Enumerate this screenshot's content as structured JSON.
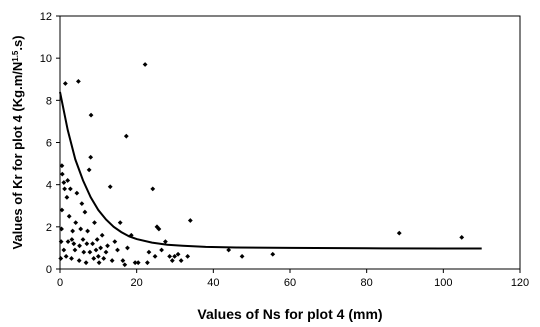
{
  "chart_data": {
    "type": "scatter",
    "title": "",
    "xlabel": "Values of Ns for plot 4 (mm)",
    "ylabel_parts": {
      "main": "Values of Kr  for plot 4 (Kg.m/N",
      "sup": "1.5",
      "end": ".s)"
    },
    "xlim": [
      0,
      120
    ],
    "ylim": [
      0,
      12
    ],
    "x_ticks": [
      "0",
      "20",
      "40",
      "60",
      "80",
      "100",
      "120"
    ],
    "y_ticks": [
      "0",
      "2",
      "4",
      "6",
      "8",
      "10",
      "12"
    ],
    "grid": false,
    "legend": "none",
    "series": [
      {
        "kind": "points",
        "color": "#000000",
        "points": [
          [
            0.2,
            0.5
          ],
          [
            0.3,
            1.3
          ],
          [
            0.4,
            1.9
          ],
          [
            0.5,
            2.8
          ],
          [
            0.5,
            4.9
          ],
          [
            0.6,
            4.5
          ],
          [
            1.0,
            0.9
          ],
          [
            1.0,
            4.1
          ],
          [
            1.2,
            3.8
          ],
          [
            1.4,
            8.8
          ],
          [
            1.6,
            0.6
          ],
          [
            1.8,
            3.4
          ],
          [
            2.0,
            4.2
          ],
          [
            2.1,
            1.3
          ],
          [
            2.4,
            2.5
          ],
          [
            2.7,
            3.8
          ],
          [
            3.0,
            0.5
          ],
          [
            3.1,
            1.4
          ],
          [
            3.3,
            1.8
          ],
          [
            3.6,
            1.2
          ],
          [
            3.9,
            0.9
          ],
          [
            4.1,
            2.2
          ],
          [
            4.4,
            3.6
          ],
          [
            4.8,
            8.9
          ],
          [
            5.0,
            0.4
          ],
          [
            5.1,
            1.1
          ],
          [
            5.4,
            1.9
          ],
          [
            5.7,
            3.1
          ],
          [
            6.0,
            1.4
          ],
          [
            6.2,
            0.8
          ],
          [
            6.5,
            2.7
          ],
          [
            6.8,
            0.3
          ],
          [
            7.0,
            1.2
          ],
          [
            7.2,
            1.8
          ],
          [
            7.6,
            4.7
          ],
          [
            7.8,
            0.8
          ],
          [
            8.0,
            5.3
          ],
          [
            8.1,
            7.3
          ],
          [
            8.5,
            1.2
          ],
          [
            8.8,
            0.5
          ],
          [
            9.0,
            2.2
          ],
          [
            9.4,
            0.9
          ],
          [
            9.7,
            1.4
          ],
          [
            10.0,
            0.6
          ],
          [
            10.2,
            0.3
          ],
          [
            10.6,
            1.0
          ],
          [
            11.0,
            1.6
          ],
          [
            11.4,
            0.5
          ],
          [
            12.0,
            0.8
          ],
          [
            12.4,
            1.1
          ],
          [
            13.1,
            3.9
          ],
          [
            13.6,
            0.4
          ],
          [
            14.3,
            1.3
          ],
          [
            15.0,
            0.9
          ],
          [
            15.7,
            2.2
          ],
          [
            16.4,
            0.4
          ],
          [
            16.9,
            0.2
          ],
          [
            17.3,
            6.3
          ],
          [
            17.6,
            1.0
          ],
          [
            18.6,
            1.6
          ],
          [
            19.6,
            0.3
          ],
          [
            20.4,
            0.3
          ],
          [
            22.2,
            9.7
          ],
          [
            22.8,
            0.3
          ],
          [
            23.2,
            0.8
          ],
          [
            24.2,
            3.8
          ],
          [
            24.8,
            0.6
          ],
          [
            25.3,
            2.0
          ],
          [
            25.8,
            1.9
          ],
          [
            26.5,
            0.9
          ],
          [
            27.5,
            1.3
          ],
          [
            28.6,
            0.6
          ],
          [
            29.3,
            0.4
          ],
          [
            29.9,
            0.6
          ],
          [
            30.8,
            0.7
          ],
          [
            31.6,
            0.4
          ],
          [
            33.3,
            0.6
          ],
          [
            34.0,
            2.3
          ],
          [
            44.0,
            0.9
          ],
          [
            47.5,
            0.6
          ],
          [
            55.5,
            0.7
          ],
          [
            88.5,
            1.7
          ],
          [
            104.8,
            1.5
          ]
        ]
      },
      {
        "kind": "curve",
        "color": "#000000",
        "points": [
          [
            0,
            8.4
          ],
          [
            2,
            6.6
          ],
          [
            4,
            5.2
          ],
          [
            6,
            4.2
          ],
          [
            8,
            3.4
          ],
          [
            10,
            2.8
          ],
          [
            12,
            2.35
          ],
          [
            14,
            2.0
          ],
          [
            16,
            1.75
          ],
          [
            18,
            1.55
          ],
          [
            20,
            1.42
          ],
          [
            24,
            1.25
          ],
          [
            28,
            1.15
          ],
          [
            32,
            1.1
          ],
          [
            38,
            1.05
          ],
          [
            46,
            1.02
          ],
          [
            60,
            1.0
          ],
          [
            80,
            0.98
          ],
          [
            100,
            0.97
          ],
          [
            110,
            0.97
          ]
        ]
      }
    ]
  }
}
